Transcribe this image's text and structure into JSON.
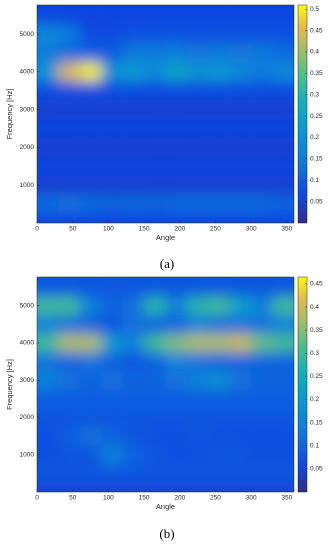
{
  "chart_data": [
    {
      "type": "heatmap",
      "label": "(a)",
      "xlabel": "Angle",
      "ylabel": "Frequency [Hz]",
      "colormap": "parula",
      "x": [
        15,
        45,
        75,
        105,
        135,
        165,
        195,
        225,
        255,
        285,
        315,
        345
      ],
      "y": [
        0,
        500,
        1000,
        1500,
        2000,
        2500,
        3000,
        3500,
        4000,
        4500,
        5000,
        5500
      ],
      "values": [
        [
          0.06,
          0.06,
          0.06,
          0.06,
          0.06,
          0.06,
          0.06,
          0.06,
          0.06,
          0.06,
          0.06,
          0.06
        ],
        [
          0.12,
          0.13,
          0.12,
          0.11,
          0.12,
          0.11,
          0.12,
          0.12,
          0.12,
          0.12,
          0.12,
          0.11
        ],
        [
          0.05,
          0.05,
          0.05,
          0.05,
          0.05,
          0.05,
          0.05,
          0.05,
          0.05,
          0.05,
          0.05,
          0.05
        ],
        [
          0.06,
          0.06,
          0.06,
          0.06,
          0.06,
          0.06,
          0.06,
          0.06,
          0.06,
          0.06,
          0.06,
          0.06
        ],
        [
          0.05,
          0.05,
          0.05,
          0.05,
          0.05,
          0.05,
          0.05,
          0.05,
          0.05,
          0.05,
          0.05,
          0.05
        ],
        [
          0.06,
          0.06,
          0.06,
          0.06,
          0.06,
          0.06,
          0.06,
          0.06,
          0.06,
          0.06,
          0.06,
          0.06
        ],
        [
          0.05,
          0.05,
          0.05,
          0.05,
          0.05,
          0.05,
          0.05,
          0.05,
          0.05,
          0.05,
          0.05,
          0.05
        ],
        [
          0.07,
          0.07,
          0.07,
          0.07,
          0.07,
          0.07,
          0.07,
          0.07,
          0.07,
          0.07,
          0.07,
          0.07
        ],
        [
          0.2,
          0.45,
          0.5,
          0.2,
          0.22,
          0.18,
          0.25,
          0.2,
          0.22,
          0.18,
          0.15,
          0.18
        ],
        [
          0.15,
          0.12,
          0.1,
          0.1,
          0.15,
          0.15,
          0.16,
          0.14,
          0.15,
          0.14,
          0.15,
          0.12
        ],
        [
          0.18,
          0.15,
          0.07,
          0.07,
          0.08,
          0.08,
          0.08,
          0.08,
          0.08,
          0.08,
          0.08,
          0.08
        ],
        [
          0.06,
          0.06,
          0.06,
          0.06,
          0.06,
          0.06,
          0.06,
          0.06,
          0.06,
          0.06,
          0.06,
          0.06
        ]
      ],
      "xlim": [
        0,
        360
      ],
      "ylim": [
        0,
        5770
      ],
      "xticks": [
        0,
        50,
        100,
        150,
        200,
        250,
        300,
        350
      ],
      "yticks": [
        1000,
        2000,
        3000,
        4000,
        5000
      ],
      "clim": [
        0,
        0.51
      ],
      "cticks": [
        0.05,
        0.1,
        0.15,
        0.2,
        0.25,
        0.3,
        0.35,
        0.4,
        0.45,
        0.5
      ]
    },
    {
      "type": "heatmap",
      "label": "(b)",
      "xlabel": "Angle",
      "ylabel": "Frequency [Hz]",
      "colormap": "parula",
      "x": [
        15,
        45,
        75,
        105,
        135,
        165,
        195,
        225,
        255,
        285,
        315,
        345
      ],
      "y": [
        0,
        500,
        1000,
        1500,
        2000,
        2500,
        3000,
        3500,
        4000,
        4500,
        5000,
        5500
      ],
      "values": [
        [
          0.05,
          0.05,
          0.05,
          0.05,
          0.05,
          0.05,
          0.05,
          0.05,
          0.05,
          0.05,
          0.05,
          0.05
        ],
        [
          0.08,
          0.08,
          0.08,
          0.08,
          0.08,
          0.08,
          0.08,
          0.08,
          0.08,
          0.08,
          0.08,
          0.08
        ],
        [
          0.07,
          0.08,
          0.08,
          0.15,
          0.1,
          0.08,
          0.07,
          0.07,
          0.08,
          0.08,
          0.07,
          0.07
        ],
        [
          0.07,
          0.09,
          0.12,
          0.1,
          0.08,
          0.07,
          0.07,
          0.08,
          0.07,
          0.07,
          0.07,
          0.07
        ],
        [
          0.08,
          0.08,
          0.08,
          0.08,
          0.08,
          0.08,
          0.08,
          0.08,
          0.08,
          0.08,
          0.08,
          0.08
        ],
        [
          0.09,
          0.09,
          0.09,
          0.09,
          0.09,
          0.09,
          0.09,
          0.09,
          0.09,
          0.09,
          0.09,
          0.09
        ],
        [
          0.15,
          0.12,
          0.1,
          0.12,
          0.1,
          0.1,
          0.12,
          0.15,
          0.18,
          0.12,
          0.1,
          0.1
        ],
        [
          0.12,
          0.1,
          0.12,
          0.1,
          0.08,
          0.1,
          0.15,
          0.12,
          0.1,
          0.1,
          0.1,
          0.1
        ],
        [
          0.3,
          0.38,
          0.38,
          0.2,
          0.15,
          0.3,
          0.35,
          0.38,
          0.38,
          0.4,
          0.33,
          0.3
        ],
        [
          0.15,
          0.12,
          0.1,
          0.08,
          0.12,
          0.1,
          0.1,
          0.15,
          0.12,
          0.12,
          0.12,
          0.15
        ],
        [
          0.3,
          0.3,
          0.15,
          0.1,
          0.12,
          0.28,
          0.15,
          0.28,
          0.3,
          0.22,
          0.15,
          0.3
        ],
        [
          0.08,
          0.08,
          0.08,
          0.08,
          0.08,
          0.08,
          0.08,
          0.08,
          0.08,
          0.08,
          0.08,
          0.08
        ]
      ],
      "xlim": [
        0,
        360
      ],
      "ylim": [
        0,
        5770
      ],
      "xticks": [
        0,
        50,
        100,
        150,
        200,
        250,
        300,
        350
      ],
      "yticks": [
        1000,
        2000,
        3000,
        4000,
        5000
      ],
      "clim": [
        0,
        0.465
      ],
      "cticks": [
        0.05,
        0.1,
        0.15,
        0.2,
        0.25,
        0.3,
        0.35,
        0.4,
        0.45
      ]
    }
  ]
}
